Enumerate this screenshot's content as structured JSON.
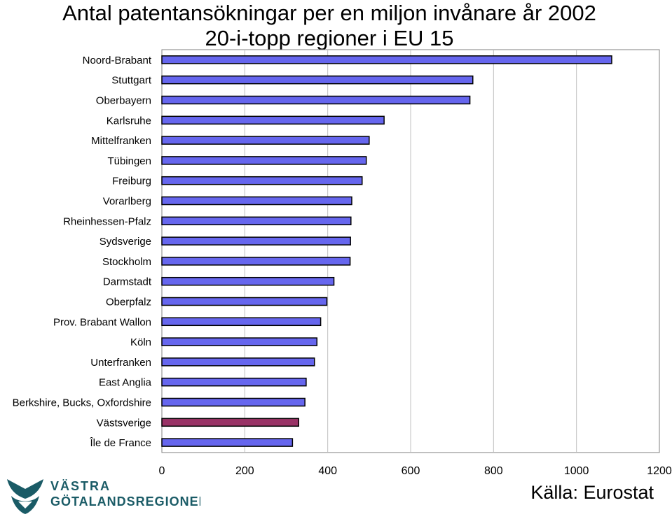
{
  "chart_data": {
    "type": "bar",
    "orientation": "horizontal",
    "title": "Antal patentansökningar per en miljon invånare år 2002",
    "subtitle": "20-i-topp regioner i EU 15",
    "categories": [
      "Noord-Brabant",
      "Stuttgart",
      "Oberbayern",
      "Karlsruhe",
      "Mittelfranken",
      "Tübingen",
      "Freiburg",
      "Vorarlberg",
      "Rheinhessen-Pfalz",
      "Sydsverige",
      "Stockholm",
      "Darmstadt",
      "Oberpfalz",
      "Prov. Brabant Wallon",
      "Köln",
      "Unterfranken",
      "East Anglia",
      "Berkshire, Bucks, Oxfordshire",
      "Västsverige",
      "Île de France"
    ],
    "values": [
      1085,
      750,
      743,
      536,
      500,
      493,
      483,
      458,
      456,
      455,
      454,
      415,
      398,
      383,
      374,
      368,
      348,
      345,
      330,
      315
    ],
    "highlight": "Västsverige",
    "xlim": [
      0,
      1200
    ],
    "xticks": [
      "0",
      "200",
      "400",
      "600",
      "800",
      "1000",
      "1200"
    ],
    "xlabel": "",
    "ylabel": "",
    "grid": true,
    "colors": {
      "bar": "#6666ee",
      "highlight": "#993366",
      "grid": "#c0c0c0",
      "axis": "#808080"
    }
  },
  "logo": {
    "line1": "VÄSTRA",
    "line2": "GÖTALANDSREGIONEN",
    "color": "#1a5b66"
  },
  "source": "Källa: Eurostat"
}
